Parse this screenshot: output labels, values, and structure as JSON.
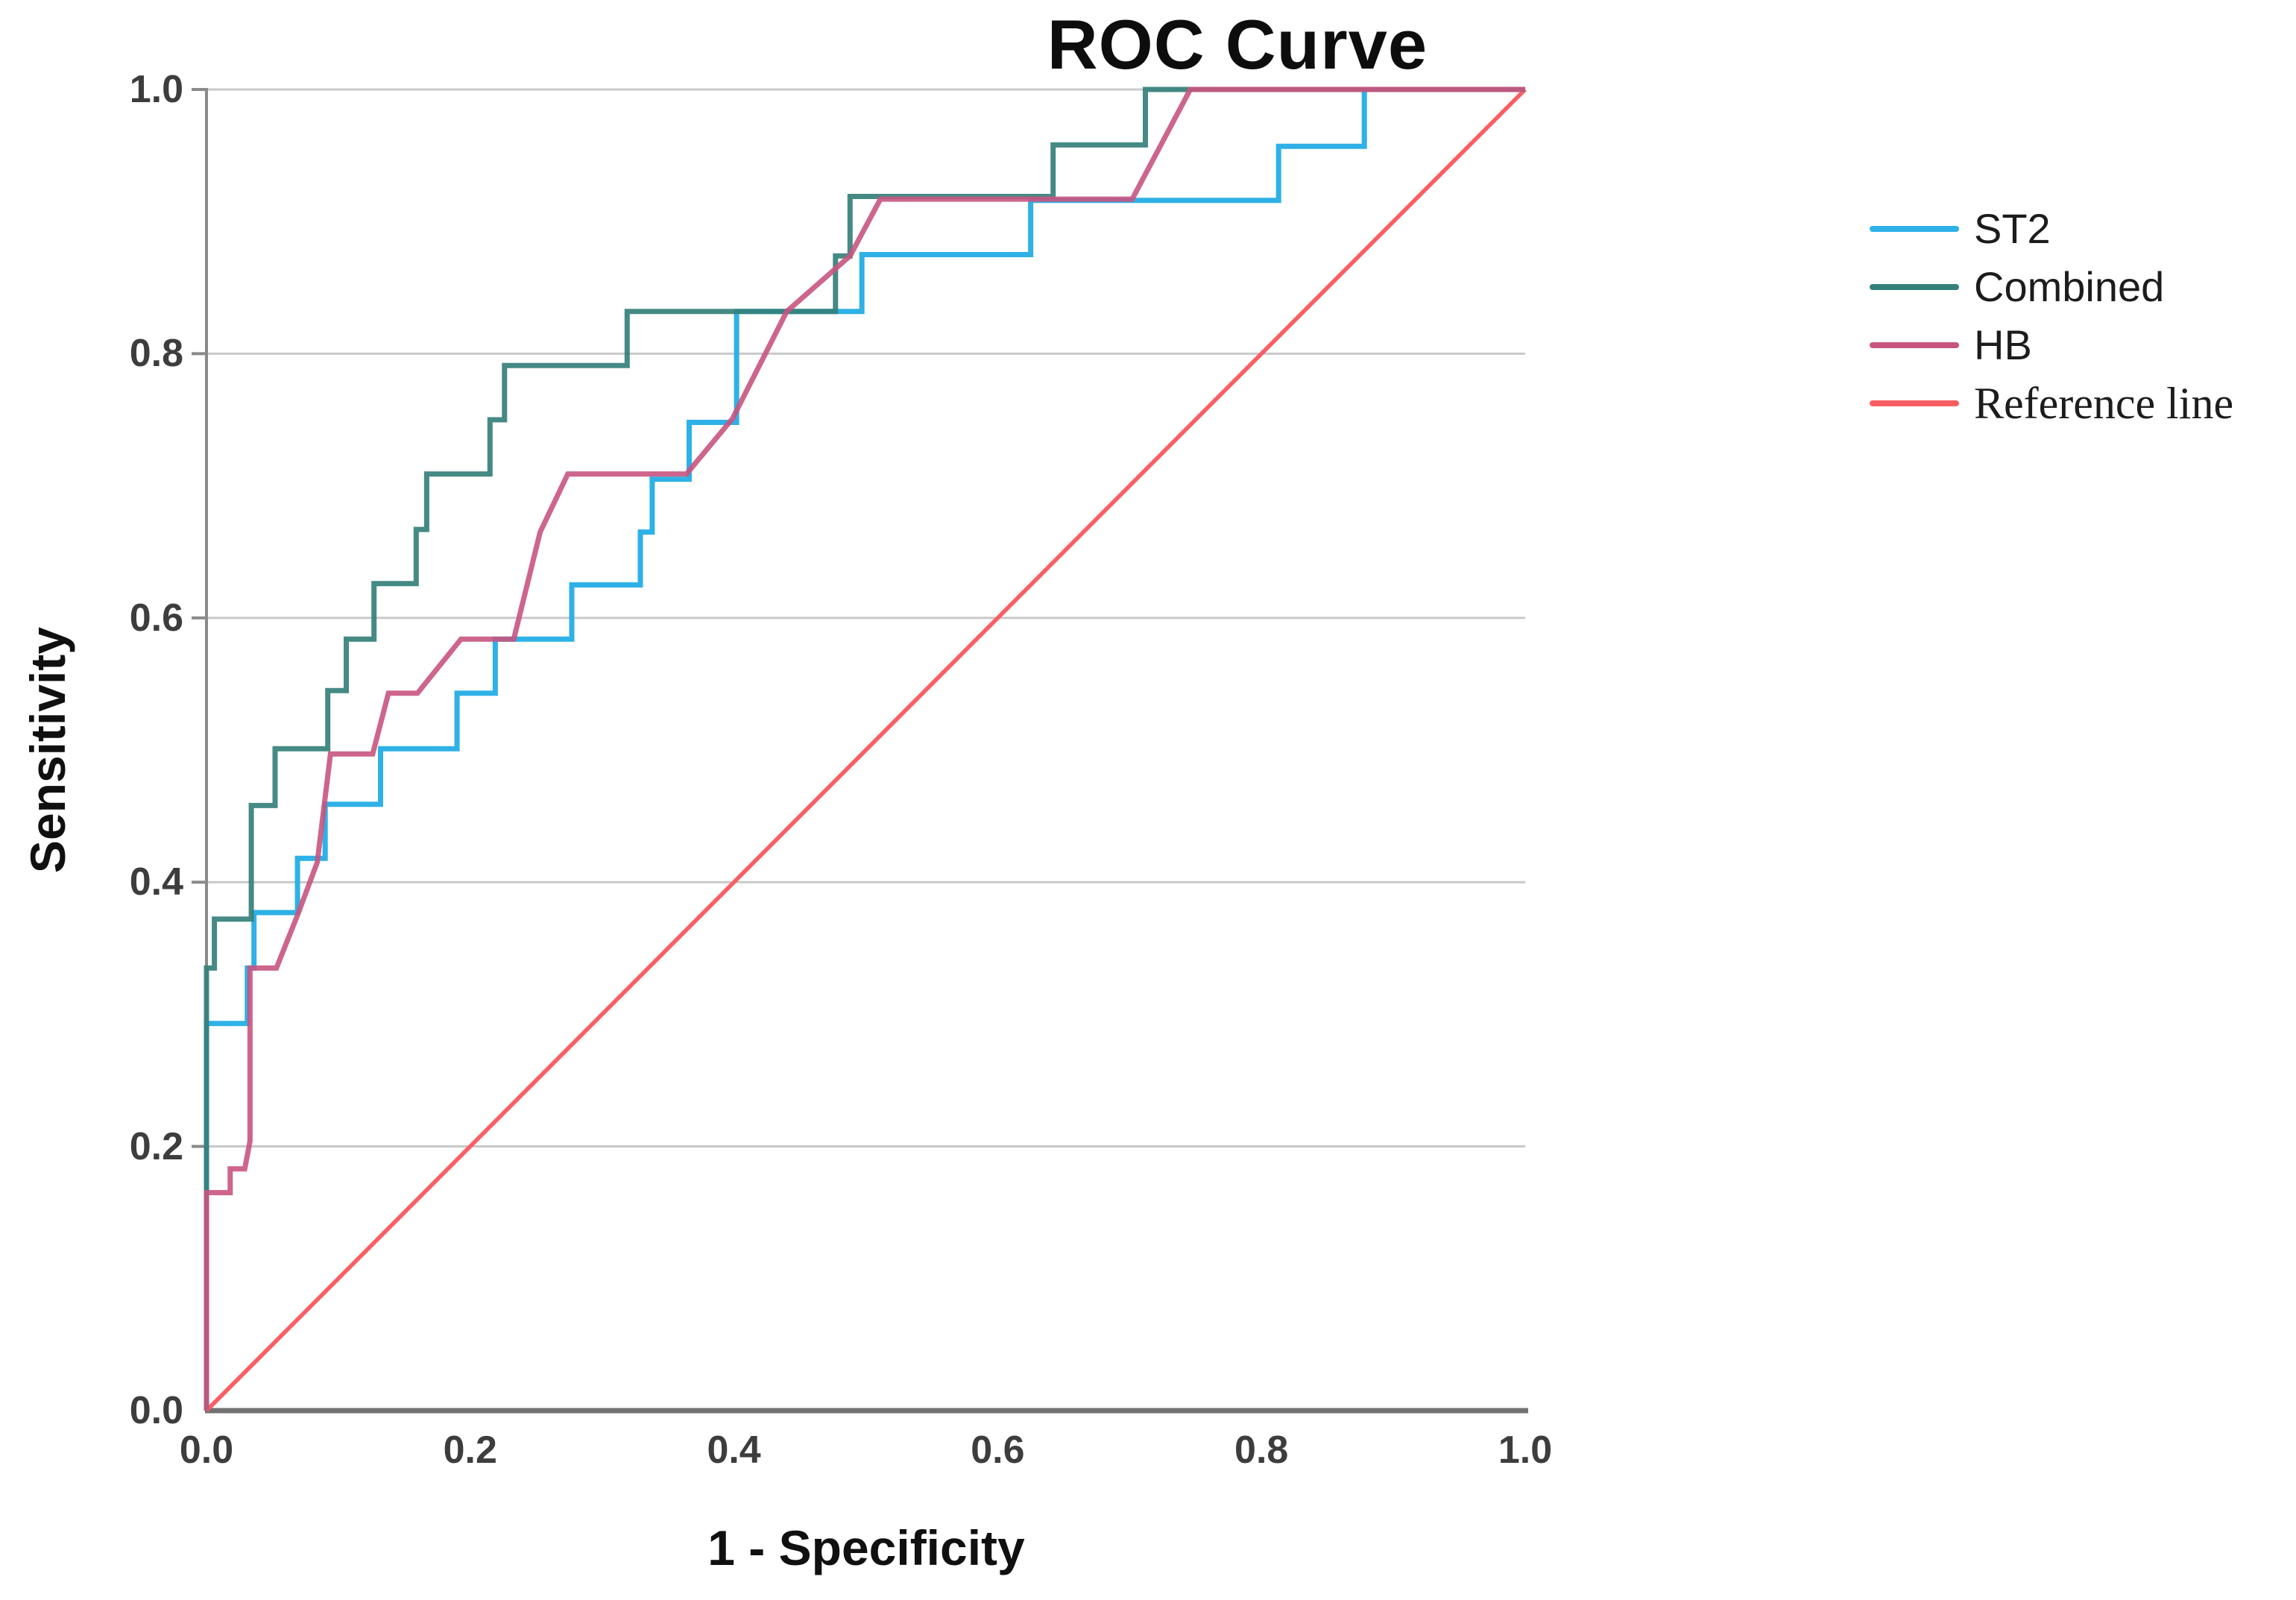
{
  "chart_data": {
    "type": "line",
    "subtype": "roc-step-curves",
    "title": "ROC Curve",
    "xlabel": "1 - Specificity",
    "ylabel": "Sensitivity",
    "xlim": [
      0,
      1
    ],
    "ylim": [
      0,
      1
    ],
    "tick_values": [
      0,
      0.2,
      0.4,
      0.6,
      0.8,
      1
    ],
    "xtick_labels": [
      "0.0",
      "0.2",
      "0.4",
      "0.6",
      "0.8",
      "1.0"
    ],
    "ytick_labels": [
      "0.0",
      "0.2",
      "0.4",
      "0.6",
      "0.8",
      "1.0"
    ],
    "grid": "horizontal-only",
    "legend_position": "right",
    "colors": {
      "grid_line": "#c9c9c9",
      "y_axis_line": "#8a8a8a",
      "x_axis_line": "#717171",
      "tick_text": "#3d3d3d",
      "title_text": "#0d0d0d"
    },
    "series": [
      {
        "name": "ST2",
        "color": "#2eb1e7",
        "points": [
          [
            0,
            0
          ],
          [
            0,
            0.293
          ],
          [
            0.031,
            0.293
          ],
          [
            0.031,
            0.335
          ],
          [
            0.036,
            0.335
          ],
          [
            0.036,
            0.377
          ],
          [
            0.069,
            0.377
          ],
          [
            0.069,
            0.418
          ],
          [
            0.09,
            0.418
          ],
          [
            0.09,
            0.459
          ],
          [
            0.132,
            0.459
          ],
          [
            0.132,
            0.501
          ],
          [
            0.19,
            0.501
          ],
          [
            0.19,
            0.543
          ],
          [
            0.219,
            0.543
          ],
          [
            0.219,
            0.584
          ],
          [
            0.277,
            0.584
          ],
          [
            0.277,
            0.625
          ],
          [
            0.329,
            0.625
          ],
          [
            0.329,
            0.665
          ],
          [
            0.338,
            0.665
          ],
          [
            0.338,
            0.705
          ],
          [
            0.366,
            0.705
          ],
          [
            0.366,
            0.748
          ],
          [
            0.402,
            0.748
          ],
          [
            0.402,
            0.832
          ],
          [
            0.497,
            0.832
          ],
          [
            0.497,
            0.875
          ],
          [
            0.625,
            0.875
          ],
          [
            0.625,
            0.916
          ],
          [
            0.813,
            0.916
          ],
          [
            0.813,
            0.957
          ],
          [
            0.878,
            0.957
          ],
          [
            0.878,
            1.0
          ],
          [
            1.0,
            1.0
          ]
        ]
      },
      {
        "name": "Combined",
        "color": "#35807a",
        "points": [
          [
            0,
            0
          ],
          [
            0,
            0.335
          ],
          [
            0.006,
            0.335
          ],
          [
            0.006,
            0.372
          ],
          [
            0.034,
            0.372
          ],
          [
            0.034,
            0.458
          ],
          [
            0.052,
            0.458
          ],
          [
            0.052,
            0.501
          ],
          [
            0.092,
            0.501
          ],
          [
            0.092,
            0.545
          ],
          [
            0.106,
            0.545
          ],
          [
            0.106,
            0.584
          ],
          [
            0.127,
            0.584
          ],
          [
            0.127,
            0.626
          ],
          [
            0.159,
            0.626
          ],
          [
            0.159,
            0.667
          ],
          [
            0.167,
            0.667
          ],
          [
            0.167,
            0.709
          ],
          [
            0.215,
            0.709
          ],
          [
            0.215,
            0.75
          ],
          [
            0.226,
            0.75
          ],
          [
            0.226,
            0.791
          ],
          [
            0.319,
            0.791
          ],
          [
            0.319,
            0.832
          ],
          [
            0.477,
            0.832
          ],
          [
            0.477,
            0.874
          ],
          [
            0.488,
            0.874
          ],
          [
            0.488,
            0.919
          ],
          [
            0.642,
            0.919
          ],
          [
            0.642,
            0.958
          ],
          [
            0.712,
            0.958
          ],
          [
            0.712,
            1.0
          ],
          [
            1.0,
            1.0
          ]
        ]
      },
      {
        "name": "HB",
        "color": "#c8547f",
        "points": [
          [
            0,
            0
          ],
          [
            0,
            0.165
          ],
          [
            0.018,
            0.165
          ],
          [
            0.018,
            0.183
          ],
          [
            0.029,
            0.183
          ],
          [
            0.033,
            0.204
          ],
          [
            0.033,
            0.335
          ],
          [
            0.053,
            0.335
          ],
          [
            0.069,
            0.375
          ],
          [
            0.084,
            0.415
          ],
          [
            0.094,
            0.497
          ],
          [
            0.126,
            0.497
          ],
          [
            0.138,
            0.543
          ],
          [
            0.16,
            0.543
          ],
          [
            0.193,
            0.584
          ],
          [
            0.233,
            0.584
          ],
          [
            0.253,
            0.665
          ],
          [
            0.274,
            0.709
          ],
          [
            0.364,
            0.709
          ],
          [
            0.399,
            0.751
          ],
          [
            0.44,
            0.832
          ],
          [
            0.488,
            0.874
          ],
          [
            0.511,
            0.917
          ],
          [
            0.702,
            0.917
          ],
          [
            0.746,
            1.0
          ],
          [
            1.0,
            1.0
          ]
        ]
      },
      {
        "name": "Reference line",
        "color": "#fb5e63",
        "points": [
          [
            0,
            0
          ],
          [
            1.0,
            1.0
          ]
        ]
      }
    ]
  }
}
